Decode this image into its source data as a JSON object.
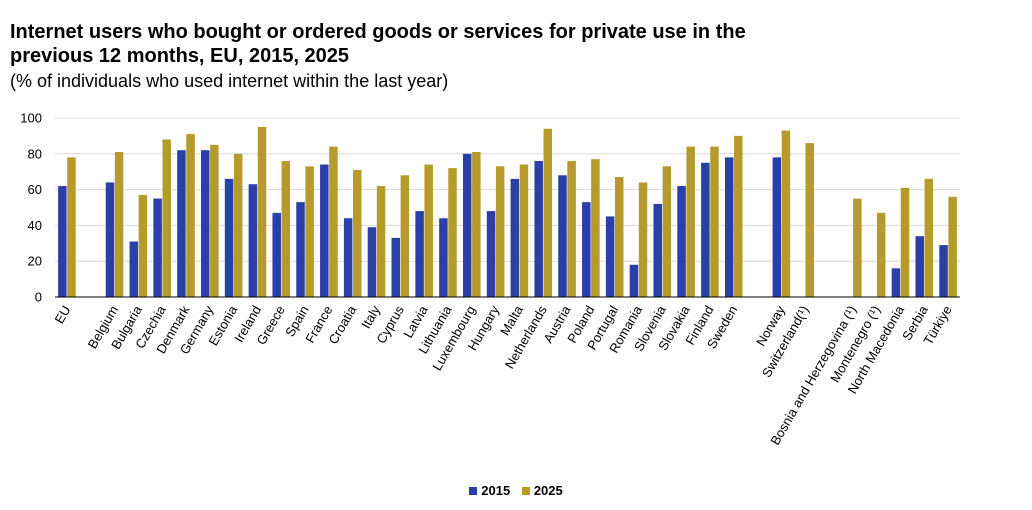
{
  "colors": {
    "s2015": "#2a3fa8",
    "s2025": "#b59a2c",
    "grid": "#d9d9d9",
    "axis": "#000000"
  },
  "chart_data": {
    "type": "bar",
    "title": "Internet users who bought or ordered goods or services for private use in the previous 12 months, EU, 2015, 2025",
    "subtitle": "(% of individuals who used internet within the last year)",
    "xlabel": "",
    "ylabel": "",
    "ylim": [
      0,
      100
    ],
    "yticks": [
      0,
      20,
      40,
      60,
      80,
      100
    ],
    "grid": true,
    "legend_position": "bottom-center",
    "categories": [
      "EU",
      "",
      "Belgium",
      "Bulgaria",
      "Czechia",
      "Denmark",
      "Germany",
      "Estonia",
      "Ireland",
      "Greece",
      "Spain",
      "France",
      "Croatia",
      "Italy",
      "Cyprus",
      "Latvia",
      "Lithuania",
      "Luxembourg",
      "Hungary",
      "Malta",
      "Netherlands",
      "Austria",
      "Poland",
      "Portugal",
      "Romania",
      "Slovenia",
      "Slovakia",
      "Finland",
      "Sweden",
      "",
      "Norway",
      "Switzerland(¹)",
      "",
      "Bosnia and Herzegovina (¹)",
      "Montenegro (¹)",
      "North Macedonia",
      "Serbia",
      "Türkiye"
    ],
    "series": [
      {
        "name": "2015",
        "values": [
          62,
          null,
          64,
          31,
          55,
          82,
          82,
          66,
          63,
          47,
          53,
          74,
          44,
          39,
          33,
          48,
          44,
          80,
          48,
          66,
          76,
          68,
          53,
          45,
          18,
          52,
          62,
          75,
          78,
          null,
          78,
          null,
          null,
          null,
          null,
          16,
          34,
          29
        ]
      },
      {
        "name": "2025",
        "values": [
          78,
          null,
          81,
          57,
          88,
          91,
          85,
          80,
          95,
          76,
          73,
          84,
          71,
          62,
          68,
          74,
          72,
          81,
          73,
          74,
          94,
          76,
          77,
          67,
          64,
          73,
          84,
          84,
          90,
          null,
          93,
          86,
          null,
          55,
          47,
          61,
          66,
          56
        ]
      }
    ]
  }
}
